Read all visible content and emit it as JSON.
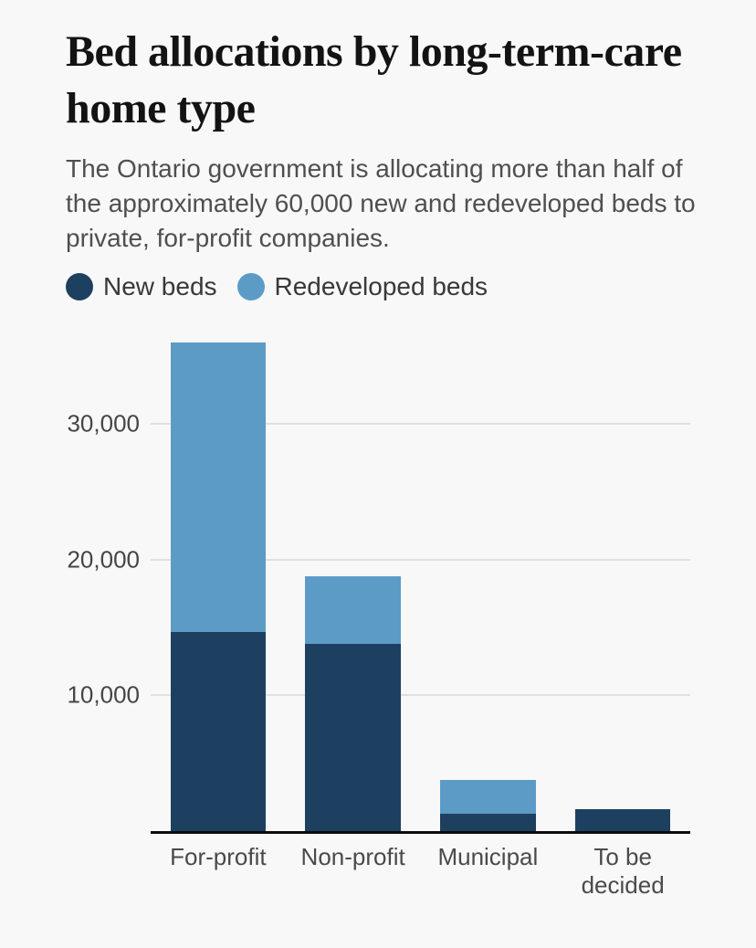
{
  "chart_data": {
    "type": "bar",
    "stacked": true,
    "title": "Bed allocations by long-term-care home type",
    "subtitle": "The Ontario government is allocating more than half of the approximately 60,000 new and redeveloped beds to private, for-profit companies.",
    "categories": [
      "For-profit",
      "Non-profit",
      "Municipal",
      "To be decided"
    ],
    "series": [
      {
        "name": "New beds",
        "color": "#1d4060",
        "values": [
          14700,
          13800,
          1300,
          1650
        ]
      },
      {
        "name": "Redeveloped beds",
        "color": "#5d9bc7",
        "values": [
          21300,
          5000,
          2450,
          0
        ]
      }
    ],
    "totals": [
      36000,
      18800,
      3750,
      1650
    ],
    "yticks": [
      10000,
      20000,
      30000
    ],
    "ytick_labels": [
      "10,000",
      "20,000",
      "30,000"
    ],
    "ylim": [
      0,
      38500
    ],
    "xlabel": "",
    "ylabel": "",
    "grid": "horizontal",
    "legend_position": "top-left"
  },
  "colors": {
    "background": "#f8f8f8",
    "gridline": "#e0e0e0",
    "axis_line": "#0b0b0b",
    "title_text": "#131313",
    "subtitle_text": "#4f4f4f",
    "tick_text": "#4a4a4a"
  }
}
